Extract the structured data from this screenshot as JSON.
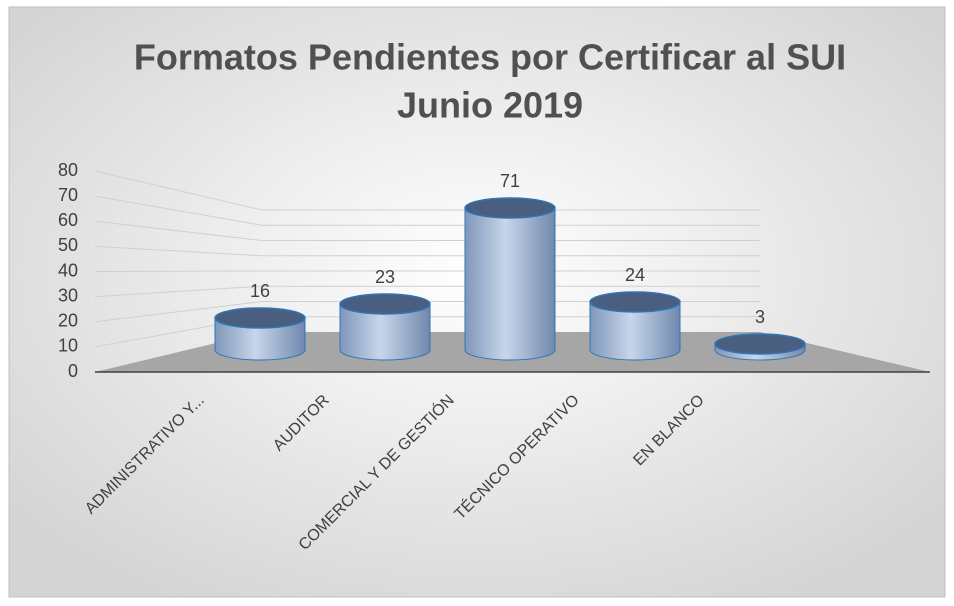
{
  "chart_data": {
    "type": "bar3d",
    "title": [
      "Formatos Pendientes por Certificar al SUI",
      "Junio 2019"
    ],
    "categories": [
      "ADMINISTRATIVO Y...",
      "AUDITOR",
      "COMERCIAL Y DE GESTIÓN",
      "TÉCNICO OPERATIVO",
      "EN BLANCO"
    ],
    "values": [
      16,
      23,
      71,
      24,
      3
    ],
    "color": "#9fb6d6",
    "ylim": [
      0,
      80
    ],
    "yticks": [
      0,
      10,
      20,
      30,
      40,
      50,
      60,
      70,
      80
    ],
    "grid": true
  }
}
